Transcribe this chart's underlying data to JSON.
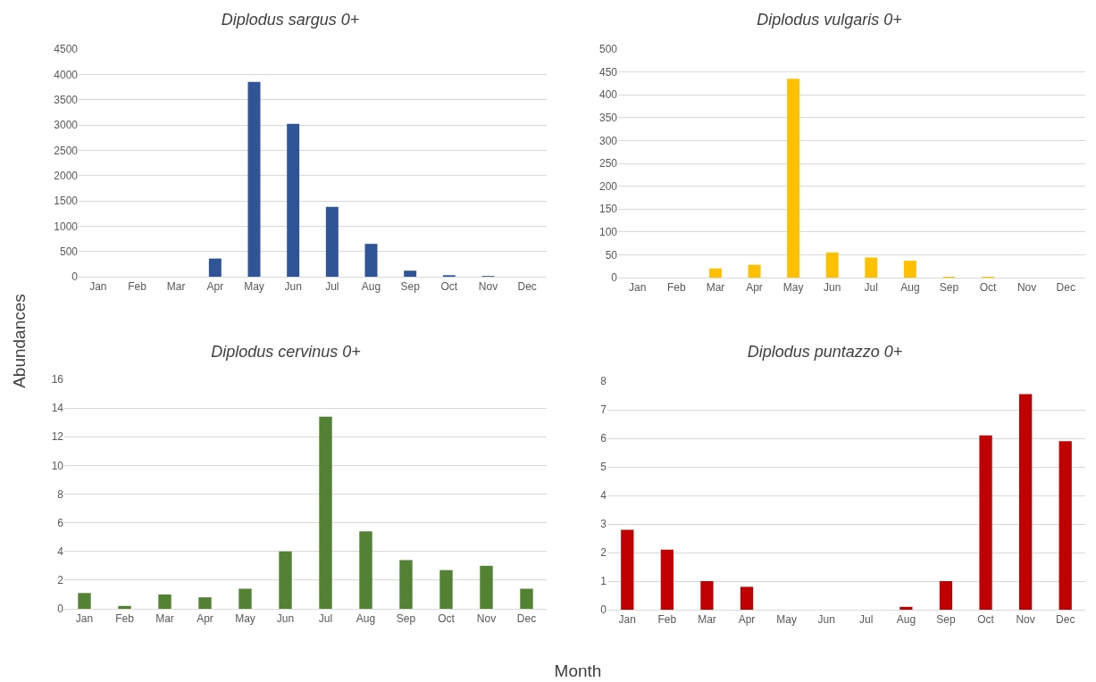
{
  "chart_data": [
    {
      "type": "bar",
      "title": "Diplodus sargus 0+",
      "ylabel": "Abundances",
      "categories": [
        "Jan",
        "Feb",
        "Mar",
        "Apr",
        "May",
        "Jun",
        "Jul",
        "Aug",
        "Sep",
        "Oct",
        "Nov",
        "Dec"
      ],
      "values": [
        0,
        0,
        0,
        360,
        3850,
        3020,
        1380,
        650,
        120,
        30,
        15,
        0
      ],
      "color": "#2f5597",
      "ylim": [
        0,
        4500
      ],
      "yticks": [
        0,
        500,
        1000,
        1500,
        2000,
        2500,
        3000,
        3500,
        4000,
        4500
      ],
      "grid": "y",
      "legend": false
    },
    {
      "type": "bar",
      "title": "Diplodus vulgaris 0+",
      "categories": [
        "Jan",
        "Feb",
        "Mar",
        "Apr",
        "May",
        "Jun",
        "Jul",
        "Aug",
        "Sep",
        "Oct",
        "Nov",
        "Dec"
      ],
      "values": [
        0,
        0,
        20,
        28,
        435,
        55,
        44,
        37,
        2,
        2,
        0,
        0
      ],
      "color": "#ffc000",
      "ylim": [
        0,
        500
      ],
      "yticks": [
        0,
        50,
        100,
        150,
        200,
        250,
        300,
        350,
        400,
        450,
        500
      ],
      "grid": "y",
      "legend": false
    },
    {
      "type": "bar",
      "title": "Diplodus cervinus 0+",
      "xlabel": "Month",
      "categories": [
        "Jan",
        "Feb",
        "Mar",
        "Apr",
        "May",
        "Jun",
        "Jul",
        "Aug",
        "Sep",
        "Oct",
        "Nov",
        "Dec"
      ],
      "values": [
        1.1,
        0.2,
        1.0,
        0.8,
        1.4,
        4.0,
        13.4,
        5.4,
        3.4,
        2.7,
        3.0,
        1.4
      ],
      "color": "#548235",
      "ylim": [
        0,
        16
      ],
      "yticks": [
        0,
        2,
        4,
        6,
        8,
        10,
        12,
        14,
        16
      ],
      "grid": "y",
      "legend": false
    },
    {
      "type": "bar",
      "title": "Diplodus puntazzo 0+",
      "categories": [
        "Jan",
        "Feb",
        "Mar",
        "Apr",
        "May",
        "Jun",
        "Jul",
        "Aug",
        "Sep",
        "Oct",
        "Nov",
        "Dec"
      ],
      "values": [
        2.8,
        2.1,
        1.0,
        0.8,
        0,
        0,
        0,
        0.1,
        1.0,
        6.1,
        7.55,
        5.9
      ],
      "color": "#c00000",
      "ylim": [
        0,
        8
      ],
      "yticks": [
        0,
        1,
        2,
        3,
        4,
        5,
        6,
        7,
        8
      ],
      "grid": "y",
      "legend": false
    }
  ]
}
